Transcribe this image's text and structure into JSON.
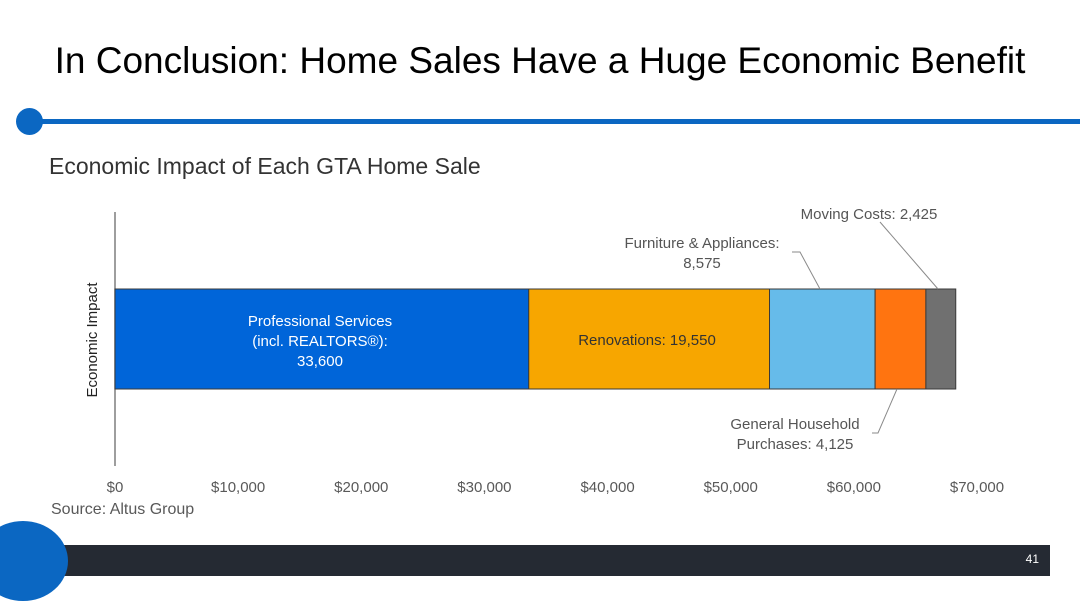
{
  "slide": {
    "title": "In Conclusion: Home Sales Have a Huge Economic Benefit",
    "page_number": "41",
    "source": "Source:  Altus Group",
    "accent_color": "#0b67c2",
    "footer_color": "#252a33"
  },
  "chart_data": {
    "type": "bar",
    "orientation": "horizontal",
    "stacked": true,
    "title": "Economic Impact of Each GTA Home Sale",
    "ylabel": "Economic Impact",
    "xlim": [
      0,
      70000
    ],
    "x_ticks": [
      0,
      10000,
      20000,
      30000,
      40000,
      50000,
      60000,
      70000
    ],
    "x_tick_labels": [
      "$0",
      "$10,000",
      "$20,000",
      "$30,000",
      "$40,000",
      "$50,000",
      "$60,000",
      "$70,000"
    ],
    "grid": false,
    "legend": "none",
    "series": [
      {
        "label_lines": [
          "Professional Services",
          "(incl. REALTORS®):",
          "33,600"
        ],
        "value": 33600,
        "color": "#0065d9",
        "label_color": "#ffffff",
        "label_position": "inside"
      },
      {
        "label_lines": [
          "Renovations: 19,550"
        ],
        "value": 19550,
        "color": "#f7a600",
        "label_color": "#333333",
        "label_position": "inside"
      },
      {
        "label_lines": [
          "Furniture & Appliances:",
          "8,575"
        ],
        "value": 8575,
        "color": "#66bbea",
        "label_color": "#555555",
        "label_position": "above"
      },
      {
        "label_lines": [
          "General Household",
          "Purchases: 4,125"
        ],
        "value": 4125,
        "color": "#ff7410",
        "label_color": "#555555",
        "label_position": "below"
      },
      {
        "label_lines": [
          "Moving Costs: 2,425"
        ],
        "value": 2425,
        "color": "#707070",
        "label_color": "#555555",
        "label_position": "above"
      }
    ]
  }
}
